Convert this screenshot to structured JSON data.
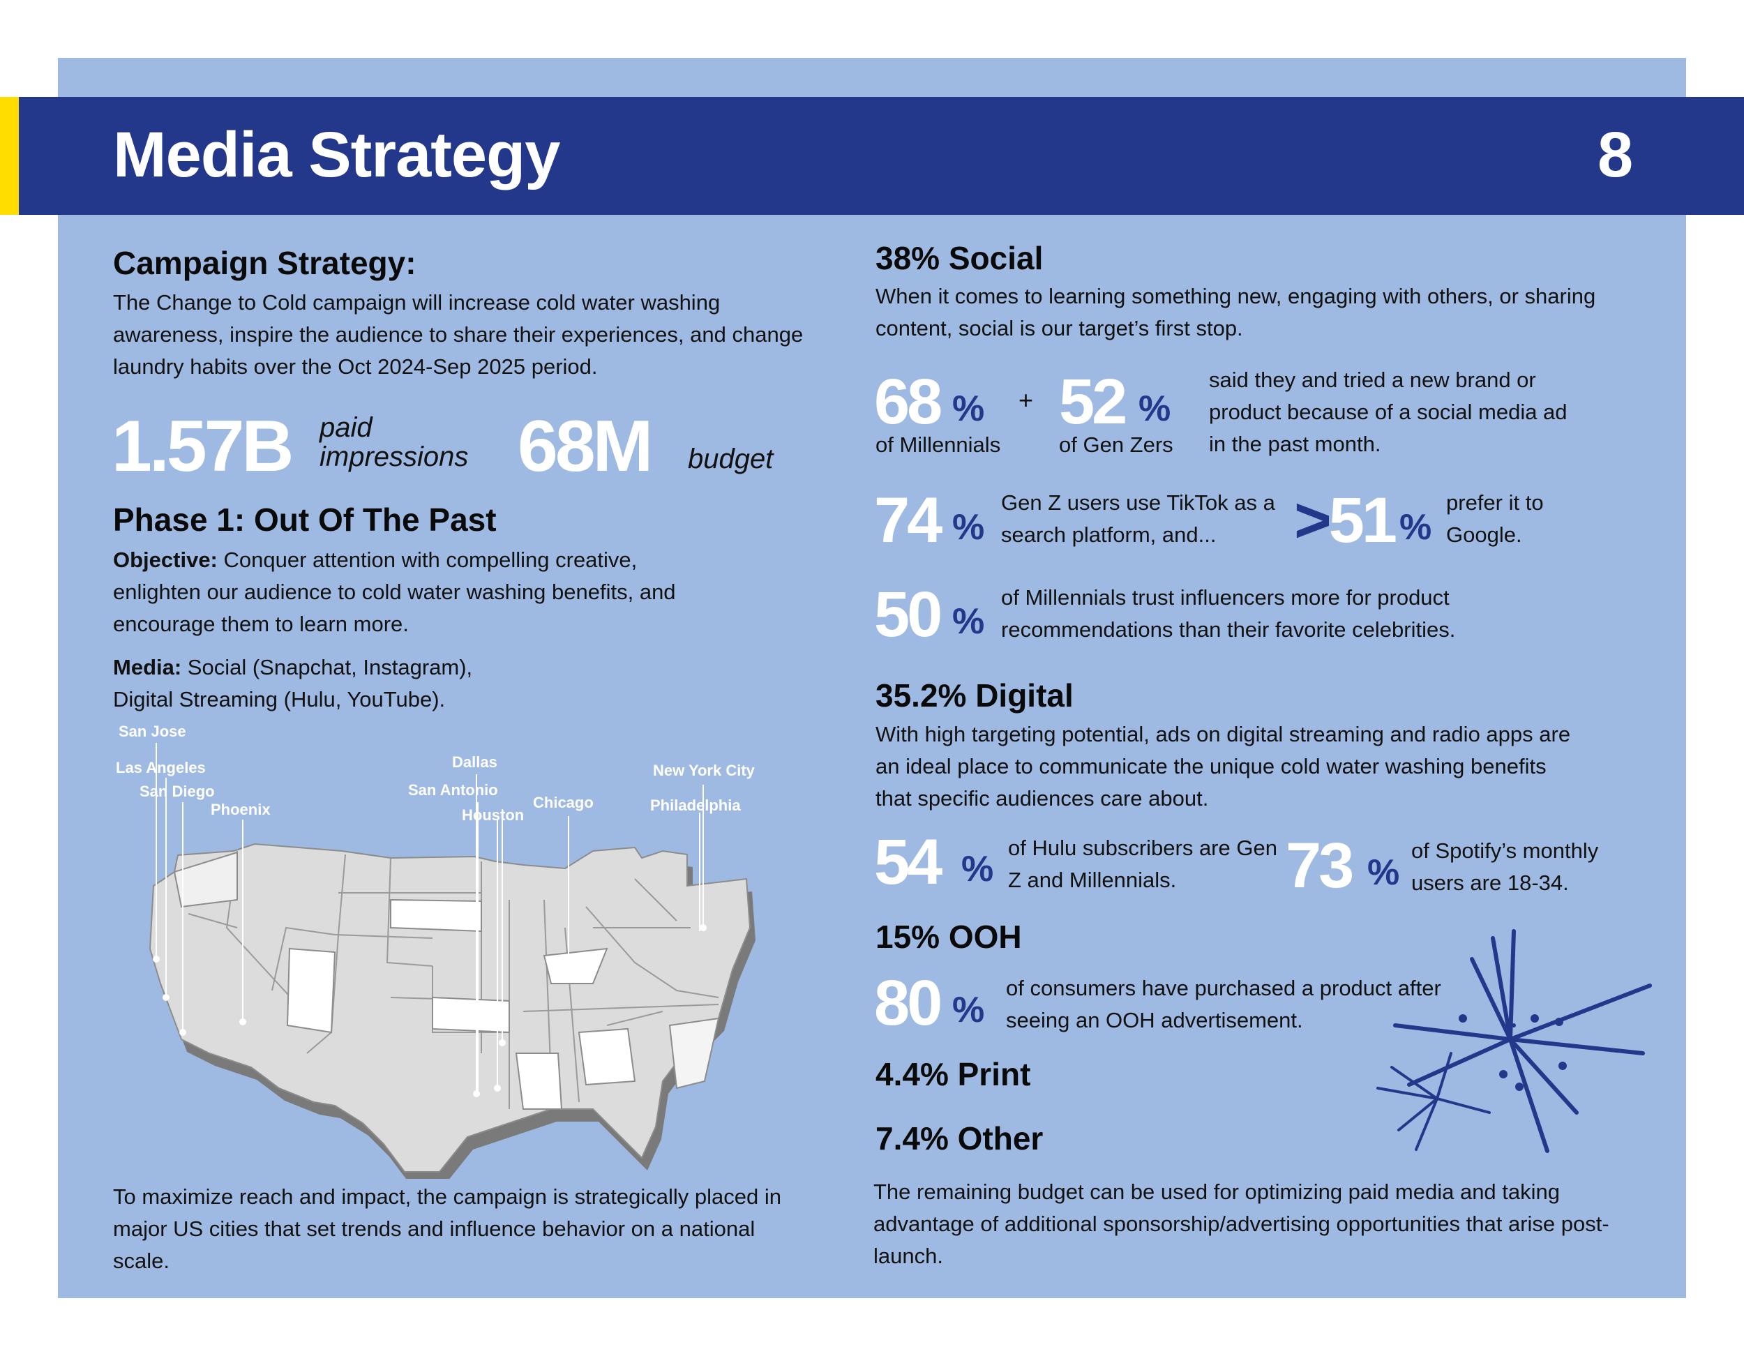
{
  "header": {
    "title": "Media Strategy",
    "page_number": "8"
  },
  "left": {
    "campaign_heading": "Campaign Strategy:",
    "campaign_text": "The Change to Cold campaign will increase cold water washing awareness, inspire the audience to share their experiences, and change laundry habits over the Oct 2024-Sep 2025 period.",
    "impressions_value": "1.57B",
    "impressions_label_1": "paid",
    "impressions_label_2": "impressions",
    "budget_value": "68M",
    "budget_label": "budget",
    "phase_heading": "Phase 1: Out Of The Past",
    "objective_label": "Objective:",
    "objective_text": " Conquer attention with compelling creative, enlighten our audience to cold water washing benefits, and encourage them to learn more.",
    "media_label": "Media:",
    "media_text": " Social (Snapchat, Instagram), Digital Streaming (Hulu, YouTube).",
    "cities": [
      "San Jose",
      "Las Angeles",
      "San Diego",
      "Phoenix",
      "Dallas",
      "San Antonio",
      "Houston",
      "Chicago",
      "New York City",
      "Philadelphia"
    ],
    "closing_text": "To maximize reach and impact, the campaign is strategically placed in major US cities that set trends and influence behavior on a national scale."
  },
  "right": {
    "social": {
      "heading": "38% Social",
      "text": "When it comes to learning something new, engaging with others, or sharing content, social is our target’s first stop.",
      "stat1_value": "68",
      "stat1_label": "of Millennials",
      "plus": "+",
      "stat2_value": "52",
      "stat2_label": "of Gen Zers",
      "stat12_text": "said they and tried a new brand or product because of a social media ad in the past month.",
      "stat3_value": "74",
      "stat3_text": "Gen Z users use TikTok as a search platform, and...",
      "stat4_value": ">51",
      "stat4_text": "prefer it to Google.",
      "stat5_value": "50",
      "stat5_text": "of Millennials trust influencers more for product recommendations than their favorite celebrities."
    },
    "digital": {
      "heading": "35.2% Digital",
      "text": "With high targeting potential, ads on digital streaming and radio apps are an ideal place to communicate the unique cold water washing benefits that specific audiences care about.",
      "stat1_value": "54",
      "stat1_text": "of Hulu subscribers are Gen Z and Millennials.",
      "stat2_value": "73",
      "stat2_text": "of Spotify’s monthly users are 18-34."
    },
    "ooh": {
      "heading": "15% OOH",
      "stat_value": "80",
      "stat_text": "of consumers have purchased a product after seeing an OOH advertisement."
    },
    "print": {
      "heading": "4.4% Print"
    },
    "other": {
      "heading": "7.4% Other",
      "text": "The remaining budget can be used for optimizing paid media and taking advantage of additional sponsorship/advertising opportunities that arise post-launch."
    },
    "percent_sign": "%"
  },
  "colors": {
    "panel": "#9fbae2",
    "header": "#23388b",
    "accent": "#ffdd00",
    "percent": "#23388b"
  },
  "icons": [
    "us-map",
    "starburst-icon"
  ]
}
